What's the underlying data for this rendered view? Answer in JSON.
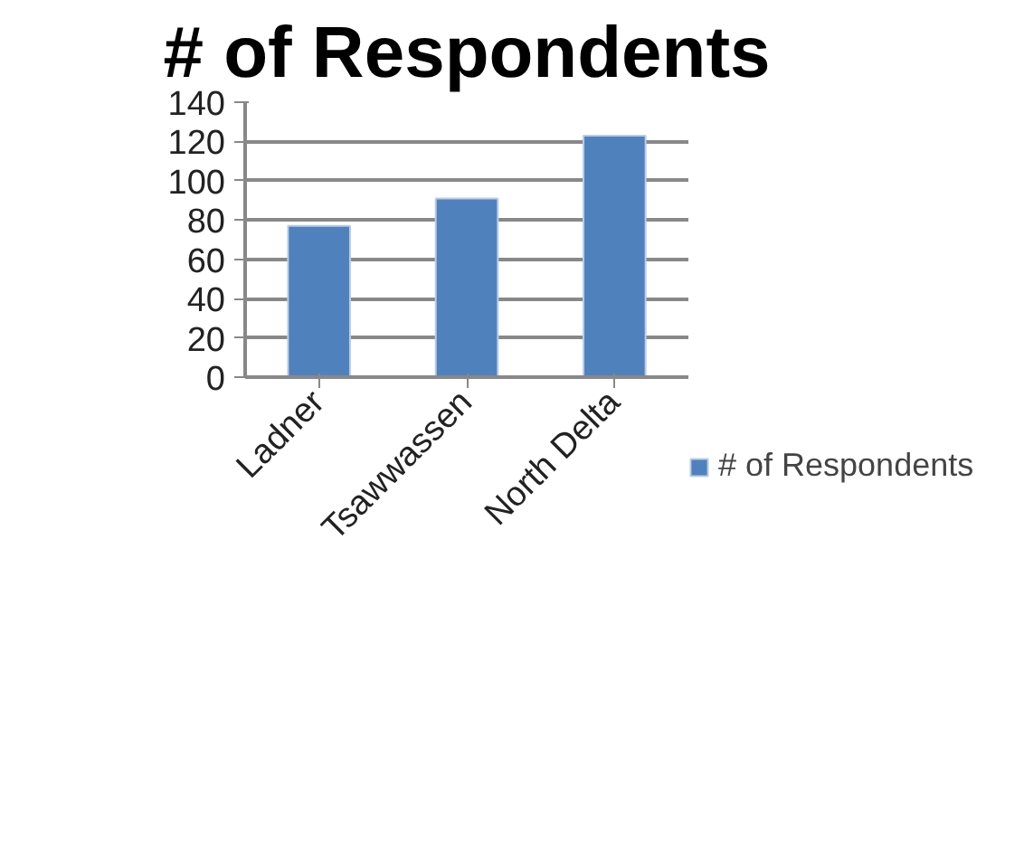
{
  "chart_data": {
    "type": "bar",
    "title": "# of Respondents",
    "categories": [
      "Ladner",
      "Tsawwassen",
      "North Delta"
    ],
    "series": [
      {
        "name": "# of Respondents",
        "color": "#4f81bd",
        "values": [
          77,
          91,
          123
        ]
      }
    ],
    "ylim": [
      0,
      140
    ],
    "yticks": [
      0,
      20,
      40,
      60,
      80,
      100,
      120,
      140
    ],
    "grid": "y",
    "legend": "right"
  }
}
